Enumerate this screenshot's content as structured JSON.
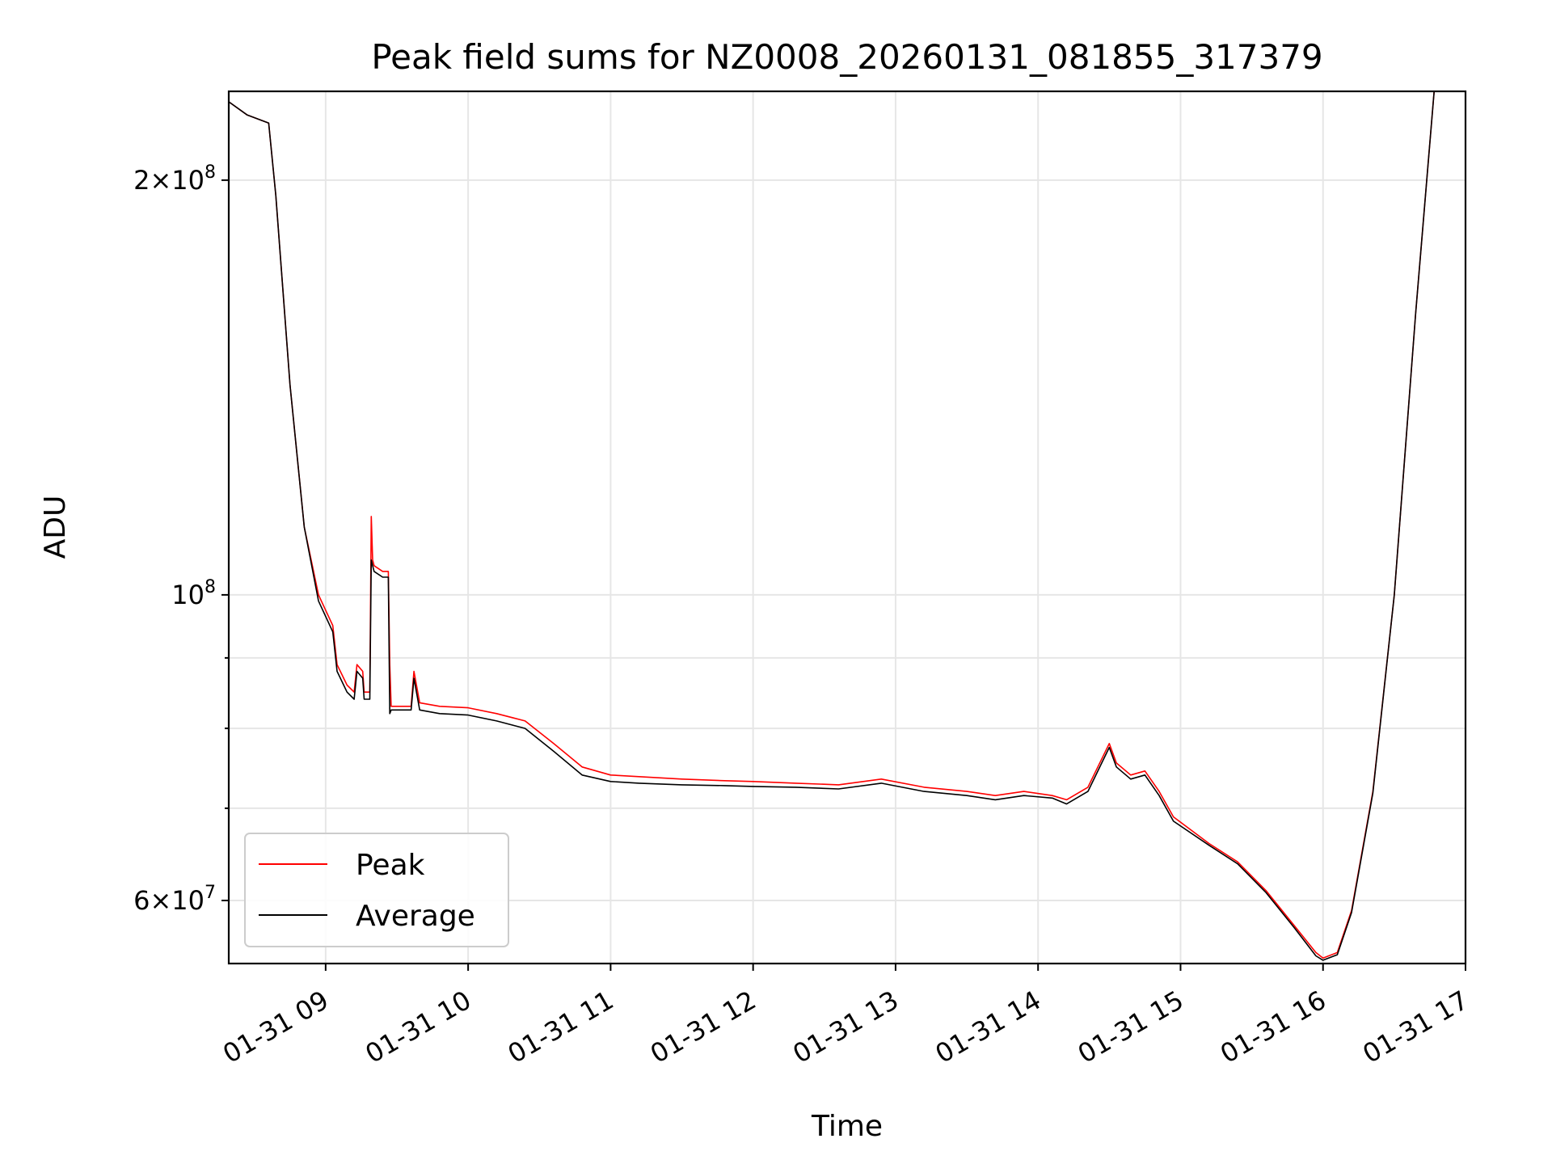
{
  "chart_data": {
    "type": "line",
    "title": "Peak field sums for NZ0008_20260131_081855_317379",
    "xlabel": "Time",
    "ylabel": "ADU",
    "x_unit": "hours since 01-31 00:00",
    "xlim": [
      8.32,
      17.0
    ],
    "ylim": [
      54000000.0,
      232000000.0
    ],
    "yscale": "log",
    "grid": true,
    "legend": "lower-left",
    "x_ticks": [
      {
        "value": 9,
        "label": "01-31 09"
      },
      {
        "value": 10,
        "label": "01-31 10"
      },
      {
        "value": 11,
        "label": "01-31 11"
      },
      {
        "value": 12,
        "label": "01-31 12"
      },
      {
        "value": 13,
        "label": "01-31 13"
      },
      {
        "value": 14,
        "label": "01-31 14"
      },
      {
        "value": 15,
        "label": "01-31 15"
      },
      {
        "value": 16,
        "label": "01-31 16"
      },
      {
        "value": 17,
        "label": "01-31 17"
      }
    ],
    "y_major_ticks": [
      {
        "value": 60000000,
        "mantissa": "6",
        "exponent": "7"
      },
      {
        "value": 100000000,
        "mantissa": "",
        "exponent": "8"
      },
      {
        "value": 200000000,
        "mantissa": "2",
        "exponent": "8"
      }
    ],
    "y_minor_ticks": [
      70000000,
      80000000,
      90000000
    ],
    "series": [
      {
        "name": "Peak",
        "color": "#ff0000",
        "x": [
          8.32,
          8.45,
          8.6,
          8.65,
          8.75,
          8.85,
          8.95,
          9.05,
          9.08,
          9.15,
          9.2,
          9.22,
          9.26,
          9.27,
          9.31,
          9.32,
          9.33,
          9.34,
          9.4,
          9.44,
          9.45,
          9.46,
          9.5,
          9.6,
          9.62,
          9.66,
          9.8,
          10.0,
          10.2,
          10.4,
          10.6,
          10.8,
          11.0,
          11.2,
          11.5,
          11.8,
          12.0,
          12.3,
          12.6,
          12.9,
          13.2,
          13.5,
          13.7,
          13.9,
          14.1,
          14.2,
          14.35,
          14.5,
          14.55,
          14.65,
          14.75,
          14.85,
          14.95,
          15.2,
          15.4,
          15.6,
          15.8,
          15.95,
          16.0,
          16.1,
          16.2,
          16.35,
          16.5,
          16.65,
          16.78,
          16.85,
          17.0
        ],
        "y": [
          228000000.0,
          223000000.0,
          220000000.0,
          195000000.0,
          142000000.0,
          112000000.0,
          100000000.0,
          95000000.0,
          89000000.0,
          86000000.0,
          85000000.0,
          89000000.0,
          88000000.0,
          85000000.0,
          85000000.0,
          114000000.0,
          106000000.0,
          105000000.0,
          104000000.0,
          104000000.0,
          89000000.0,
          83000000.0,
          83000000.0,
          83000000.0,
          88000000.0,
          83500000.0,
          83000000.0,
          82800000.0,
          82000000.0,
          81000000.0,
          78000000.0,
          75000000.0,
          74000000.0,
          73800000.0,
          73500000.0,
          73300000.0,
          73200000.0,
          73000000.0,
          72800000.0,
          73500000.0,
          72500000.0,
          72000000.0,
          71500000.0,
          72000000.0,
          71500000.0,
          71000000.0,
          72500000.0,
          78000000.0,
          75500000.0,
          74000000.0,
          74500000.0,
          72000000.0,
          69000000.0,
          66000000.0,
          64000000.0,
          61000000.0,
          57500000.0,
          55000000.0,
          54500000.0,
          55000000.0,
          59000000.0,
          72000000.0,
          100000000.0,
          160000000.0,
          232000000.0,
          232000000.0,
          232000000.0
        ]
      },
      {
        "name": "Average",
        "color": "#000000",
        "x": [
          8.32,
          8.45,
          8.6,
          8.65,
          8.75,
          8.85,
          8.95,
          9.05,
          9.08,
          9.15,
          9.2,
          9.22,
          9.26,
          9.27,
          9.31,
          9.32,
          9.33,
          9.34,
          9.4,
          9.44,
          9.45,
          9.46,
          9.5,
          9.6,
          9.62,
          9.66,
          9.8,
          10.0,
          10.2,
          10.4,
          10.6,
          10.8,
          11.0,
          11.2,
          11.5,
          11.8,
          12.0,
          12.3,
          12.6,
          12.9,
          13.2,
          13.5,
          13.7,
          13.9,
          14.1,
          14.2,
          14.35,
          14.5,
          14.55,
          14.65,
          14.75,
          14.85,
          14.95,
          15.2,
          15.4,
          15.6,
          15.8,
          15.95,
          16.0,
          16.1,
          16.2,
          16.35,
          16.5,
          16.65,
          16.78,
          16.85,
          17.0
        ],
        "y": [
          228000000.0,
          223000000.0,
          220000000.0,
          195000000.0,
          142000000.0,
          112000000.0,
          99000000.0,
          94000000.0,
          88000000.0,
          85000000.0,
          84000000.0,
          88000000.0,
          87000000.0,
          84000000.0,
          84000000.0,
          106000000.0,
          105000000.0,
          104000000.0,
          103000000.0,
          103000000.0,
          82000000.0,
          82500000.0,
          82500000.0,
          82500000.0,
          87000000.0,
          82500000.0,
          82000000.0,
          81800000.0,
          81000000.0,
          80000000.0,
          77000000.0,
          74000000.0,
          73200000.0,
          73000000.0,
          72800000.0,
          72700000.0,
          72600000.0,
          72500000.0,
          72300000.0,
          73000000.0,
          72000000.0,
          71500000.0,
          71000000.0,
          71500000.0,
          71200000.0,
          70500000.0,
          72000000.0,
          77500000.0,
          75000000.0,
          73500000.0,
          74000000.0,
          71500000.0,
          68500000.0,
          65800000.0,
          63800000.0,
          60800000.0,
          57300000.0,
          54700000.0,
          54300000.0,
          54800000.0,
          58800000.0,
          71800000.0,
          100000000.0,
          160000000.0,
          232000000.0,
          232000000.0,
          232000000.0
        ]
      }
    ]
  }
}
